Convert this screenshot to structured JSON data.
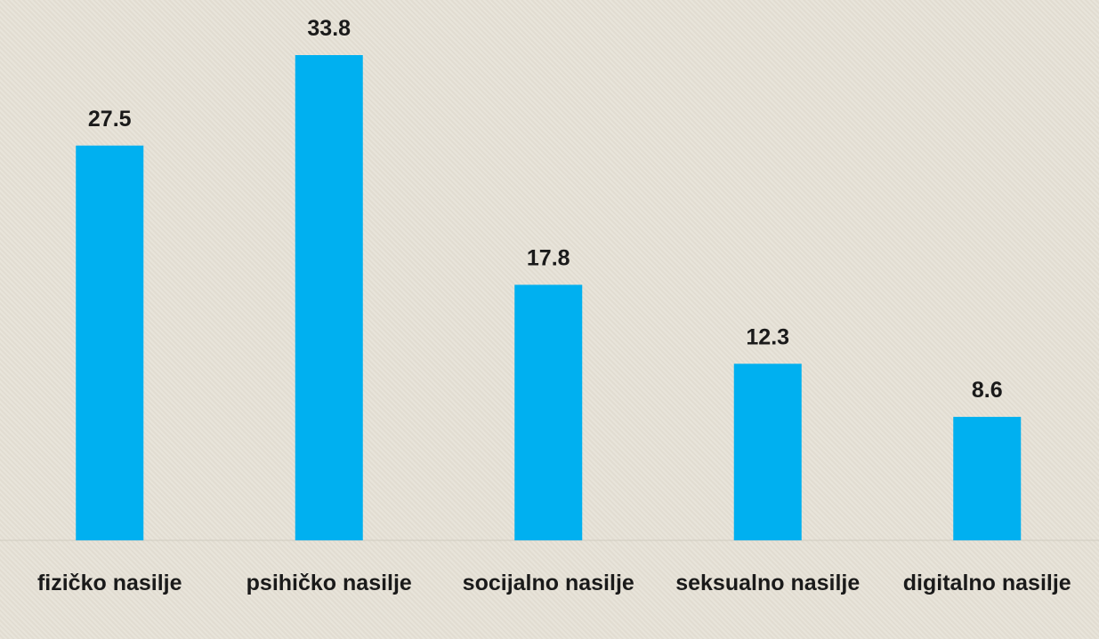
{
  "chart_data": {
    "type": "bar",
    "categories": [
      "fizičko nasilje",
      "psihičko nasilje",
      "socijalno nasilje",
      "seksualno nasilje",
      "digitalno nasilje"
    ],
    "values": [
      27.5,
      33.8,
      17.8,
      12.3,
      8.6
    ],
    "color": "#00b0f0"
  }
}
